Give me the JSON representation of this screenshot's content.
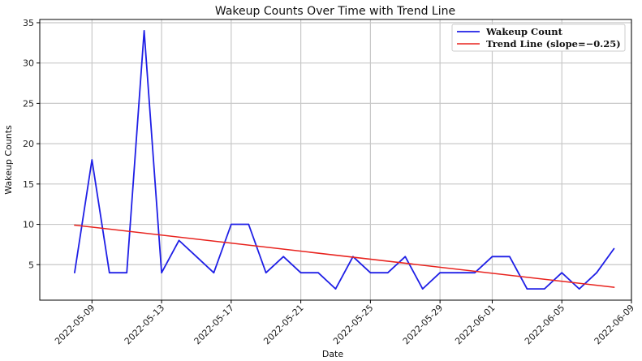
{
  "chart_data": {
    "type": "line",
    "title": "Wakeup Counts Over Time with Trend Line",
    "xlabel": "Date",
    "ylabel": "Wakeup Counts",
    "ylim": [
      0.6,
      35.4
    ],
    "xlim": [
      "2022-05-06",
      "2022-06-09"
    ],
    "grid": true,
    "legend_position": "top-right",
    "x_ticks": [
      "2022-05-09",
      "2022-05-13",
      "2022-05-17",
      "2022-05-21",
      "2022-05-25",
      "2022-05-29",
      "2022-06-01",
      "2022-06-05",
      "2022-06-09"
    ],
    "y_ticks": [
      5,
      10,
      15,
      20,
      25,
      30,
      35
    ],
    "series": [
      {
        "name": "Wakeup Count",
        "color": "#1f1fe6",
        "x": [
          "2022-05-08",
          "2022-05-09",
          "2022-05-10",
          "2022-05-11",
          "2022-05-12",
          "2022-05-13",
          "2022-05-14",
          "2022-05-15",
          "2022-05-16",
          "2022-05-17",
          "2022-05-18",
          "2022-05-19",
          "2022-05-20",
          "2022-05-21",
          "2022-05-22",
          "2022-05-23",
          "2022-05-24",
          "2022-05-25",
          "2022-05-26",
          "2022-05-27",
          "2022-05-28",
          "2022-05-29",
          "2022-05-30",
          "2022-05-31",
          "2022-06-01",
          "2022-06-02",
          "2022-06-03",
          "2022-06-04",
          "2022-06-05",
          "2022-06-06",
          "2022-06-07",
          "2022-06-08"
        ],
        "values": [
          4,
          18,
          4,
          4,
          34,
          4,
          8,
          6,
          4,
          10,
          10,
          4,
          6,
          4,
          4,
          2,
          6,
          4,
          4,
          6,
          2,
          4,
          4,
          4,
          6,
          6,
          2,
          2,
          4,
          2,
          4,
          7
        ]
      },
      {
        "name": "Trend Line (slope=−0.25)",
        "color": "#e8231e",
        "x": [
          "2022-05-08",
          "2022-06-08"
        ],
        "values": [
          9.9,
          2.2
        ]
      }
    ]
  }
}
